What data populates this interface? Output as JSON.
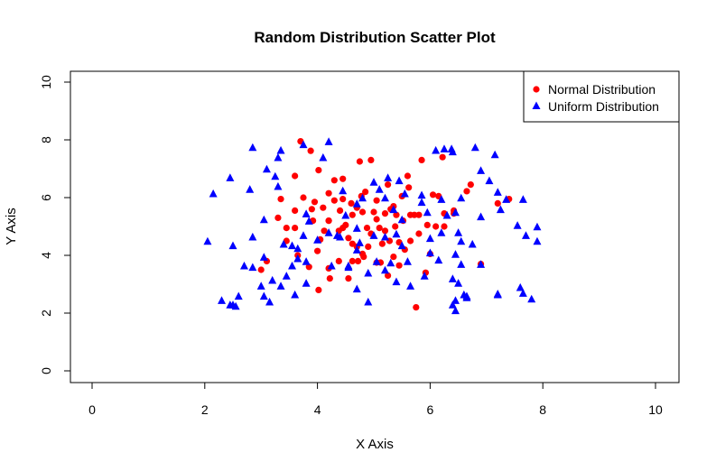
{
  "chart_data": {
    "type": "scatter",
    "title": "Random Distribution Scatter Plot",
    "xlabel": "X Axis",
    "ylabel": "Y Axis",
    "xlim": [
      0,
      10
    ],
    "ylim": [
      0,
      10
    ],
    "x_ticks": [
      "0",
      "2",
      "4",
      "6",
      "8",
      "10"
    ],
    "y_ticks": [
      "0",
      "2",
      "4",
      "6",
      "8",
      "10"
    ],
    "grid": false,
    "legend_position": "top-right",
    "series": [
      {
        "name": "Normal Distribution",
        "color": "#ff0000",
        "marker": "circle",
        "points": [
          [
            3.7,
            7.95
          ],
          [
            3.88,
            7.62
          ],
          [
            4.02,
            6.95
          ],
          [
            4.75,
            7.25
          ],
          [
            4.95,
            7.3
          ],
          [
            5.85,
            7.3
          ],
          [
            6.22,
            7.4
          ],
          [
            3.6,
            6.75
          ],
          [
            4.3,
            6.6
          ],
          [
            4.45,
            6.65
          ],
          [
            5.6,
            6.75
          ],
          [
            3.75,
            6.0
          ],
          [
            3.95,
            5.85
          ],
          [
            4.45,
            5.95
          ],
          [
            4.6,
            5.8
          ],
          [
            4.78,
            6.05
          ],
          [
            4.85,
            6.2
          ],
          [
            5.05,
            5.9
          ],
          [
            5.25,
            6.45
          ],
          [
            5.5,
            6.05
          ],
          [
            5.62,
            6.35
          ],
          [
            6.05,
            6.1
          ],
          [
            6.15,
            6.05
          ],
          [
            6.65,
            6.22
          ],
          [
            6.72,
            6.45
          ],
          [
            7.4,
            5.95
          ],
          [
            7.2,
            5.8
          ],
          [
            3.35,
            5.95
          ],
          [
            3.6,
            5.55
          ],
          [
            3.45,
            4.95
          ],
          [
            3.6,
            4.95
          ],
          [
            3.9,
            5.6
          ],
          [
            3.92,
            5.2
          ],
          [
            4.1,
            5.65
          ],
          [
            4.2,
            5.2
          ],
          [
            4.3,
            5.9
          ],
          [
            4.4,
            5.55
          ],
          [
            4.5,
            5.05
          ],
          [
            4.62,
            5.4
          ],
          [
            4.7,
            5.65
          ],
          [
            4.8,
            5.5
          ],
          [
            4.88,
            4.95
          ],
          [
            5.0,
            5.5
          ],
          [
            5.05,
            5.25
          ],
          [
            5.2,
            5.45
          ],
          [
            5.3,
            5.6
          ],
          [
            5.35,
            5.7
          ],
          [
            5.4,
            5.4
          ],
          [
            5.52,
            5.2
          ],
          [
            5.65,
            5.4
          ],
          [
            5.72,
            5.4
          ],
          [
            5.8,
            5.4
          ],
          [
            5.95,
            5.05
          ],
          [
            6.1,
            5.0
          ],
          [
            6.25,
            5.45
          ],
          [
            6.42,
            5.55
          ],
          [
            6.42,
            5.45
          ],
          [
            6.25,
            5.0
          ],
          [
            3.3,
            5.3
          ],
          [
            3.1,
            3.8
          ],
          [
            3.0,
            3.5
          ],
          [
            3.45,
            4.5
          ],
          [
            3.65,
            4.0
          ],
          [
            3.85,
            3.6
          ],
          [
            4.0,
            4.15
          ],
          [
            4.05,
            4.55
          ],
          [
            4.12,
            4.85
          ],
          [
            4.2,
            5.2
          ],
          [
            4.38,
            4.85
          ],
          [
            4.45,
            4.95
          ],
          [
            4.55,
            4.6
          ],
          [
            4.62,
            4.4
          ],
          [
            4.7,
            4.3
          ],
          [
            4.8,
            4.05
          ],
          [
            4.9,
            4.3
          ],
          [
            4.95,
            4.75
          ],
          [
            5.1,
            4.95
          ],
          [
            5.15,
            4.4
          ],
          [
            5.2,
            4.85
          ],
          [
            5.28,
            4.5
          ],
          [
            5.38,
            5.0
          ],
          [
            5.45,
            4.45
          ],
          [
            5.55,
            4.2
          ],
          [
            5.65,
            4.5
          ],
          [
            5.8,
            4.75
          ],
          [
            5.92,
            3.4
          ],
          [
            6.0,
            4.05
          ],
          [
            4.2,
            3.55
          ],
          [
            4.38,
            3.8
          ],
          [
            4.62,
            3.8
          ],
          [
            4.72,
            3.8
          ],
          [
            4.82,
            3.95
          ],
          [
            5.05,
            3.75
          ],
          [
            5.12,
            3.75
          ],
          [
            5.25,
            3.3
          ],
          [
            5.35,
            3.95
          ],
          [
            5.45,
            3.65
          ],
          [
            4.02,
            2.8
          ],
          [
            4.22,
            3.2
          ],
          [
            4.55,
            3.2
          ],
          [
            5.75,
            2.2
          ],
          [
            6.9,
            3.7
          ],
          [
            4.2,
            6.15
          ]
        ]
      },
      {
        "name": "Uniform Distribution",
        "color": "#0000ff",
        "marker": "triangle",
        "points": [
          [
            2.85,
            7.75
          ],
          [
            3.3,
            7.4
          ],
          [
            3.35,
            7.65
          ],
          [
            3.75,
            7.85
          ],
          [
            4.2,
            7.95
          ],
          [
            6.1,
            7.65
          ],
          [
            6.25,
            7.7
          ],
          [
            6.38,
            7.7
          ],
          [
            6.4,
            7.6
          ],
          [
            6.8,
            7.75
          ],
          [
            7.15,
            7.5
          ],
          [
            3.1,
            7.0
          ],
          [
            3.25,
            6.75
          ],
          [
            4.1,
            7.4
          ],
          [
            4.8,
            6.0
          ],
          [
            5.25,
            6.7
          ],
          [
            6.9,
            6.95
          ],
          [
            7.05,
            6.6
          ],
          [
            2.45,
            6.7
          ],
          [
            2.15,
            6.15
          ],
          [
            2.8,
            6.3
          ],
          [
            3.3,
            6.4
          ],
          [
            4.45,
            6.25
          ],
          [
            4.7,
            5.8
          ],
          [
            5.0,
            6.55
          ],
          [
            5.1,
            6.3
          ],
          [
            5.45,
            6.6
          ],
          [
            5.55,
            6.15
          ],
          [
            5.85,
            6.1
          ],
          [
            6.2,
            5.95
          ],
          [
            6.55,
            6.0
          ],
          [
            7.2,
            6.2
          ],
          [
            7.35,
            5.95
          ],
          [
            7.65,
            5.95
          ],
          [
            3.05,
            5.25
          ],
          [
            3.8,
            5.45
          ],
          [
            3.85,
            5.2
          ],
          [
            4.5,
            5.4
          ],
          [
            4.7,
            4.95
          ],
          [
            5.2,
            6.0
          ],
          [
            5.35,
            5.6
          ],
          [
            5.5,
            5.25
          ],
          [
            5.85,
            5.85
          ],
          [
            5.95,
            5.5
          ],
          [
            6.3,
            5.4
          ],
          [
            6.45,
            5.5
          ],
          [
            6.9,
            5.35
          ],
          [
            7.25,
            5.6
          ],
          [
            7.9,
            5.0
          ],
          [
            7.55,
            5.05
          ],
          [
            2.05,
            4.5
          ],
          [
            2.5,
            4.35
          ],
          [
            2.85,
            4.65
          ],
          [
            3.4,
            4.4
          ],
          [
            3.55,
            4.35
          ],
          [
            3.65,
            4.25
          ],
          [
            3.75,
            4.7
          ],
          [
            4.0,
            4.55
          ],
          [
            4.2,
            4.8
          ],
          [
            4.35,
            4.7
          ],
          [
            4.4,
            4.65
          ],
          [
            4.75,
            4.45
          ],
          [
            5.0,
            4.7
          ],
          [
            5.2,
            4.65
          ],
          [
            5.4,
            4.75
          ],
          [
            5.5,
            4.35
          ],
          [
            6.0,
            4.6
          ],
          [
            6.2,
            4.8
          ],
          [
            6.5,
            4.8
          ],
          [
            6.55,
            4.5
          ],
          [
            6.75,
            4.4
          ],
          [
            7.7,
            4.7
          ],
          [
            7.9,
            4.5
          ],
          [
            2.7,
            3.65
          ],
          [
            2.85,
            3.6
          ],
          [
            3.05,
            3.95
          ],
          [
            3.45,
            3.3
          ],
          [
            3.55,
            3.65
          ],
          [
            3.65,
            3.9
          ],
          [
            3.8,
            3.8
          ],
          [
            4.25,
            3.65
          ],
          [
            4.55,
            3.65
          ],
          [
            4.7,
            4.2
          ],
          [
            5.05,
            3.8
          ],
          [
            5.3,
            3.75
          ],
          [
            5.6,
            3.8
          ],
          [
            6.0,
            4.1
          ],
          [
            6.15,
            3.85
          ],
          [
            6.45,
            4.05
          ],
          [
            6.55,
            3.7
          ],
          [
            6.9,
            3.7
          ],
          [
            3.2,
            3.15
          ],
          [
            3.8,
            3.05
          ],
          [
            4.55,
            3.6
          ],
          [
            4.9,
            3.4
          ],
          [
            5.2,
            3.5
          ],
          [
            5.4,
            3.1
          ],
          [
            5.65,
            2.95
          ],
          [
            5.9,
            3.3
          ],
          [
            6.4,
            3.2
          ],
          [
            6.5,
            3.05
          ],
          [
            3.35,
            2.95
          ],
          [
            3.05,
            2.6
          ],
          [
            3.15,
            2.4
          ],
          [
            3.6,
            2.65
          ],
          [
            4.7,
            2.85
          ],
          [
            4.9,
            2.4
          ],
          [
            6.4,
            2.3
          ],
          [
            6.45,
            2.1
          ],
          [
            6.65,
            2.6
          ],
          [
            6.6,
            2.65
          ],
          [
            7.2,
            2.65
          ],
          [
            7.6,
            2.9
          ],
          [
            7.65,
            2.7
          ],
          [
            7.8,
            2.5
          ],
          [
            2.3,
            2.45
          ],
          [
            2.45,
            2.3
          ],
          [
            2.55,
            2.25
          ],
          [
            2.6,
            2.6
          ],
          [
            2.5,
            2.3
          ],
          [
            3.0,
            2.95
          ],
          [
            6.45,
            2.45
          ],
          [
            6.65,
            2.55
          ],
          [
            7.2,
            2.68
          ]
        ]
      }
    ]
  }
}
